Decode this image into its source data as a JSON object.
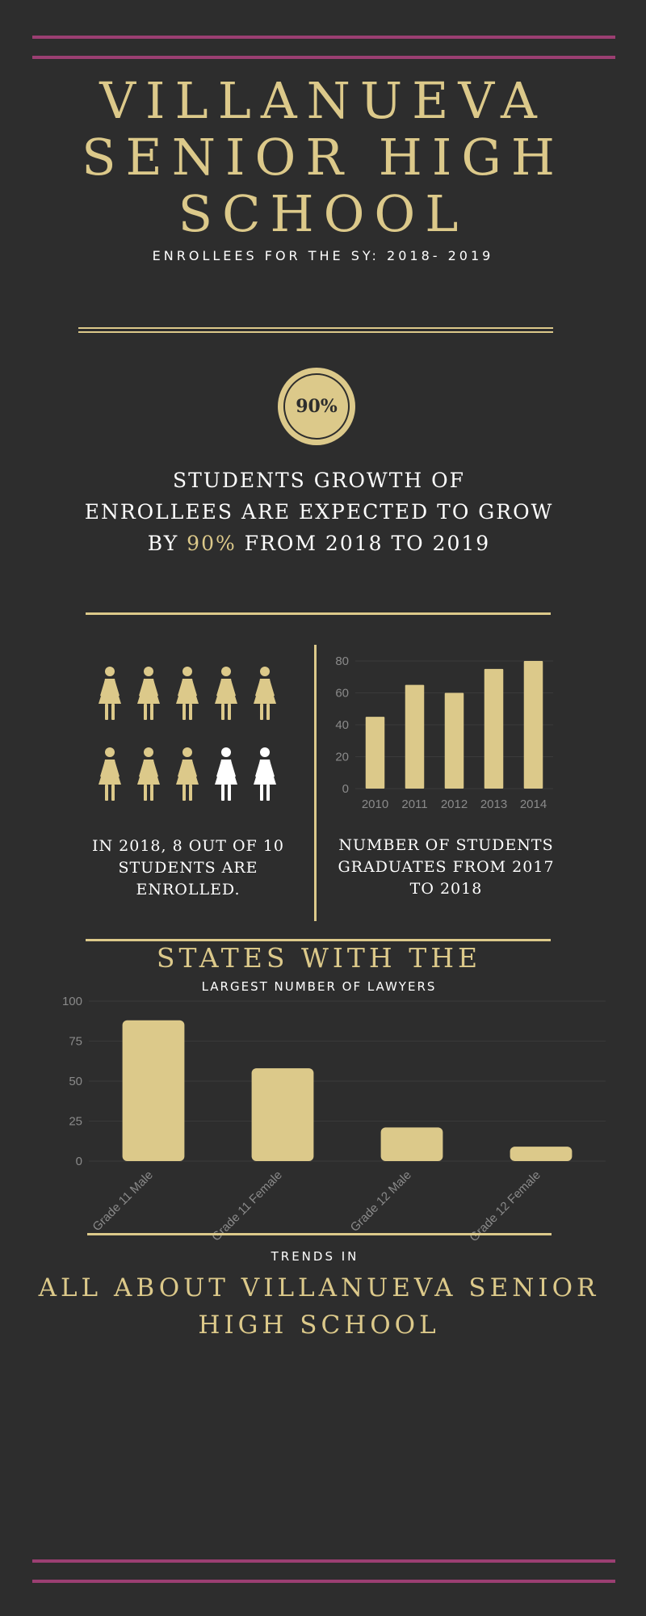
{
  "colors": {
    "background": "#2d2d2d",
    "gold": "#dcc98a",
    "pink": "#9b3f72",
    "white": "#ffffff",
    "axis_text": "#8a8a8a"
  },
  "header": {
    "title_line1": "VILLANUEVA",
    "title_line2": "SENIOR HIGH",
    "title_line3": "SCHOOL",
    "subtitle": "ENROLLEES FOR THE SY: 2018- 2019"
  },
  "growth": {
    "badge": "90%",
    "line1": "STUDENTS GROWTH OF",
    "line2": "ENROLLEES ARE EXPECTED TO GROW",
    "line3_pre": "BY ",
    "line3_highlight": "90%",
    "line3_post": " FROM 2018 TO 2019"
  },
  "enrollment": {
    "icon": "female-person-icon",
    "enrolled": 8,
    "total": 10,
    "caption_line1": "IN 2018, 8 OUT OF 10",
    "caption_line2": "STUDENTS ARE",
    "caption_line3": "ENROLLED."
  },
  "graduates": {
    "caption_line1": "NUMBER OF STUDENTS",
    "caption_line2": "GRADUATES FROM 2017",
    "caption_line3": "TO 2018"
  },
  "lawyers": {
    "title": "STATES WITH THE",
    "subtitle": "LARGEST NUMBER OF LAWYERS"
  },
  "trends": {
    "label": "TRENDS IN",
    "title_line1": "ALL ABOUT VILLANUEVA SENIOR",
    "title_line2": "HIGH SCHOOL"
  },
  "chart_data": [
    {
      "type": "bar",
      "categories": [
        "2010",
        "2011",
        "2012",
        "2013",
        "2014"
      ],
      "values": [
        45,
        65,
        60,
        75,
        80
      ],
      "ylim": [
        0,
        80
      ],
      "yticks": [
        0,
        20,
        40,
        60,
        80
      ],
      "grid": true
    },
    {
      "type": "bar",
      "categories": [
        "Grade 11 Male",
        "Grade 11 Female",
        "Grade 12 Male",
        "Grade 12 Female"
      ],
      "values": [
        88,
        58,
        21,
        9
      ],
      "ylim": [
        0,
        100
      ],
      "yticks": [
        0,
        25,
        50,
        75,
        100
      ],
      "grid": true
    }
  ]
}
